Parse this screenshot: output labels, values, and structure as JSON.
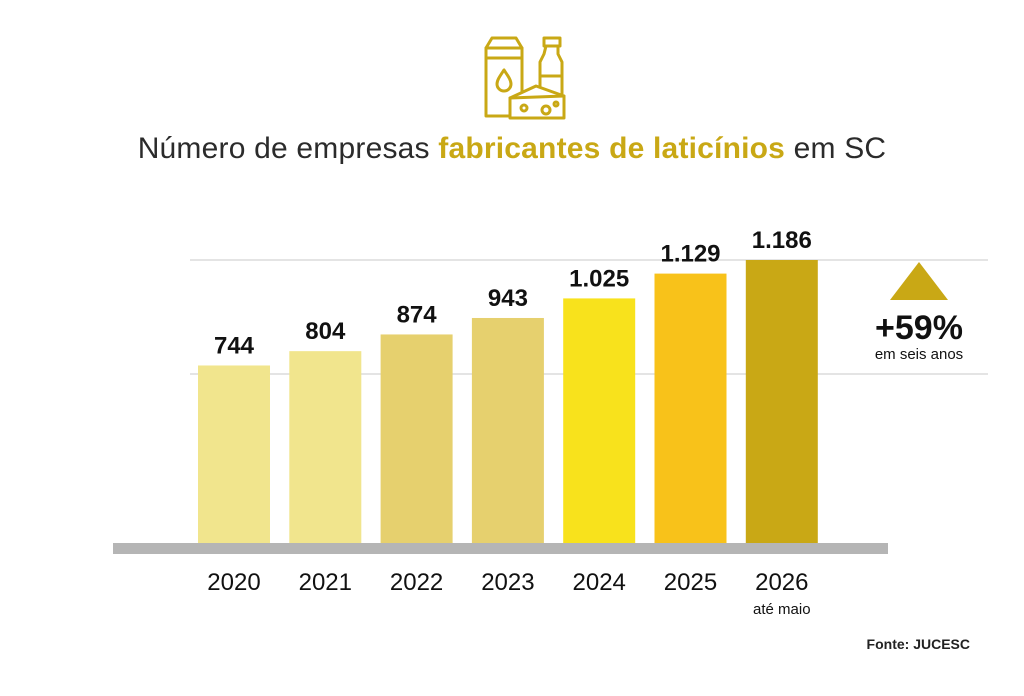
{
  "header": {
    "title_part1": "Número de empresas ",
    "title_highlight": "fabricantes de laticínios",
    "title_part2": " em SC",
    "icon": "dairy-products-icon"
  },
  "highlight": {
    "change_label": "+59%",
    "change_caption": "em seis anos",
    "arrow_icon": "up-triangle-icon"
  },
  "footer": {
    "source": "Fonte: JUCESC"
  },
  "colors": {
    "accent": "#c9a815",
    "axis": "#b5b5b5",
    "bars": [
      "#f1e58d",
      "#f1e58d",
      "#e6d06e",
      "#e6d06e",
      "#f8e21c",
      "#f8c21a",
      "#c9a815"
    ]
  },
  "chart_data": {
    "type": "bar",
    "categories": [
      "2020",
      "2021",
      "2022",
      "2023",
      "2024",
      "2025",
      "2026"
    ],
    "category_notes": [
      "",
      "",
      "",
      "",
      "",
      "",
      "até maio"
    ],
    "values": [
      744,
      804,
      874,
      943,
      1025,
      1129,
      1186
    ],
    "value_labels": [
      "744",
      "804",
      "874",
      "943",
      "1.025",
      "1.129",
      "1.186"
    ],
    "title": "Número de empresas fabricantes de laticínios em SC",
    "xlabel": "",
    "ylabel": "",
    "ylim": [
      0,
      1186
    ],
    "grid": true,
    "legend": "none"
  }
}
